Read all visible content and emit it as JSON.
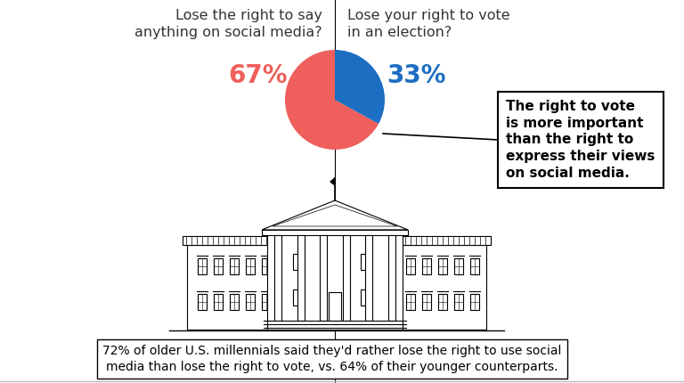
{
  "chart_data": {
    "type": "pie",
    "categories": [
      "Lose the right to say anything on social media?",
      "Lose your right to vote in an election?"
    ],
    "values": [
      67,
      33
    ],
    "value_labels": [
      "67%",
      "33%"
    ],
    "colors": [
      "#ef5f5b",
      "#1b6ec2"
    ],
    "annotations": [
      "The right to vote is more important than the right to express their views on social media.",
      "72% of older U.S. millennials said they'd rather lose the right to use social media than lose the right to vote, vs. 64% of their younger counterparts."
    ]
  }
}
